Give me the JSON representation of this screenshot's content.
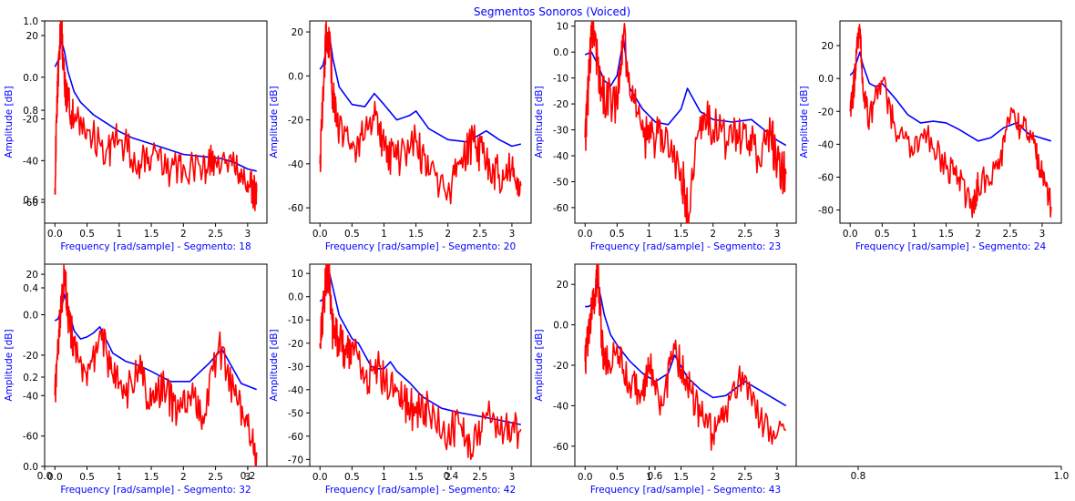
{
  "figure": {
    "title": "Segmentos Sonoros (Voiced)",
    "background_axes": {
      "x_ticks": [
        "0.0",
        "0.2",
        "0.4",
        "0.6",
        "0.8",
        "1.0"
      ],
      "y_ticks": [
        "0.0",
        "0.2",
        "0.4",
        "0.6",
        "0.8",
        "1.0"
      ]
    }
  },
  "colors": {
    "spectrum": "#ff0000",
    "lpc_envelope": "#0000ff",
    "label": "#0000ff"
  },
  "chart_data": [
    {
      "type": "line",
      "segment": 18,
      "xlabel": "Frequency [rad/sample] - Segmento: 18",
      "ylabel": "Amplitude [dB]",
      "xlim": [
        -0.16,
        3.3
      ],
      "ylim": [
        -70,
        27
      ],
      "xticks": [
        0.0,
        0.5,
        1.0,
        1.5,
        2.0,
        2.5,
        3.0
      ],
      "yticks": [
        -60,
        -40,
        -20,
        0,
        20
      ],
      "series": [
        {
          "color": "#0000ff",
          "x": [
            0,
            0.05,
            0.1,
            0.15,
            0.2,
            0.3,
            0.4,
            0.5,
            0.6,
            0.8,
            1.0,
            1.2,
            1.5,
            1.8,
            2.0,
            2.3,
            2.6,
            2.8,
            3.0,
            3.14
          ],
          "y": [
            5,
            8,
            18,
            12,
            3,
            -7,
            -12,
            -15,
            -18,
            -22,
            -26,
            -29,
            -32,
            -35,
            -37,
            -38,
            -39,
            -41,
            -44,
            -45
          ]
        },
        {
          "color": "#ff0000",
          "x": [
            0,
            0.03,
            0.06,
            0.1,
            0.15,
            0.2,
            0.3,
            0.5,
            0.8,
            1.0,
            1.3,
            1.5,
            1.8,
            2.0,
            2.3,
            2.5,
            2.8,
            3.0,
            3.1,
            3.14
          ],
          "y": [
            -53,
            -15,
            10,
            26,
            -5,
            -10,
            -22,
            -25,
            -35,
            -30,
            -40,
            -38,
            -45,
            -42,
            -44,
            -40,
            -45,
            -50,
            -56,
            -55
          ]
        }
      ]
    },
    {
      "type": "line",
      "segment": 20,
      "xlabel": "Frequency [rad/sample] - Segmento: 20",
      "ylabel": "Amplitude [dB]",
      "xlim": [
        -0.16,
        3.3
      ],
      "ylim": [
        -67,
        25
      ],
      "xticks": [
        0.0,
        0.5,
        1.0,
        1.5,
        2.0,
        2.5,
        3.0
      ],
      "yticks": [
        -60,
        -40,
        -20,
        0,
        20
      ],
      "series": [
        {
          "color": "#0000ff",
          "x": [
            0,
            0.05,
            0.1,
            0.15,
            0.2,
            0.3,
            0.5,
            0.7,
            0.85,
            1.0,
            1.2,
            1.4,
            1.5,
            1.7,
            2.0,
            2.3,
            2.6,
            2.8,
            3.0,
            3.14
          ],
          "y": [
            3,
            5,
            12,
            18,
            8,
            -5,
            -13,
            -14,
            -8,
            -13,
            -20,
            -18,
            -16,
            -24,
            -29,
            -30,
            -25,
            -29,
            -32,
            -31
          ]
        },
        {
          "color": "#ff0000",
          "x": [
            0,
            0.05,
            0.1,
            0.15,
            0.2,
            0.3,
            0.5,
            0.7,
            0.9,
            1.0,
            1.2,
            1.5,
            1.7,
            2.0,
            2.2,
            2.4,
            2.6,
            2.8,
            3.0,
            3.14
          ],
          "y": [
            -40,
            -5,
            21,
            15,
            -10,
            -25,
            -33,
            -28,
            -18,
            -34,
            -38,
            -30,
            -45,
            -52,
            -40,
            -30,
            -40,
            -45,
            -42,
            -50
          ]
        }
      ]
    },
    {
      "type": "line",
      "segment": 23,
      "xlabel": "Frequency [rad/sample] - Segmento: 23",
      "ylabel": "Amplitude [dB]",
      "xlim": [
        -0.16,
        3.3
      ],
      "ylim": [
        -66,
        12
      ],
      "xticks": [
        0.0,
        0.5,
        1.0,
        1.5,
        2.0,
        2.5,
        3.0
      ],
      "yticks": [
        -60,
        -50,
        -40,
        -30,
        -20,
        -10,
        0,
        10
      ],
      "series": [
        {
          "color": "#0000ff",
          "x": [
            0,
            0.1,
            0.2,
            0.3,
            0.4,
            0.5,
            0.6,
            0.7,
            0.9,
            1.1,
            1.3,
            1.5,
            1.6,
            1.8,
            2.0,
            2.3,
            2.6,
            2.8,
            3.0,
            3.14
          ],
          "y": [
            -1,
            0,
            -5,
            -11,
            -13,
            -9,
            5,
            -14,
            -22,
            -27,
            -28,
            -22,
            -14,
            -23,
            -26,
            -27,
            -26,
            -30,
            -34,
            -36
          ]
        },
        {
          "color": "#ff0000",
          "x": [
            0,
            0.05,
            0.1,
            0.2,
            0.3,
            0.5,
            0.6,
            0.8,
            1.0,
            1.2,
            1.5,
            1.6,
            1.8,
            2.0,
            2.3,
            2.5,
            2.7,
            2.9,
            3.0,
            3.14
          ],
          "y": [
            -33,
            -15,
            9,
            -5,
            -18,
            -20,
            6,
            -25,
            -35,
            -30,
            -45,
            -62,
            -25,
            -30,
            -35,
            -28,
            -40,
            -30,
            -45,
            -47
          ]
        }
      ]
    },
    {
      "type": "line",
      "segment": 24,
      "xlabel": "Frequency [rad/sample] - Segmento: 24",
      "ylabel": "Amplitude [dB]",
      "xlim": [
        -0.16,
        3.3
      ],
      "ylim": [
        -88,
        35
      ],
      "xticks": [
        0.0,
        0.5,
        1.0,
        1.5,
        2.0,
        2.5,
        3.0
      ],
      "yticks": [
        -80,
        -60,
        -40,
        -20,
        0,
        20
      ],
      "series": [
        {
          "color": "#0000ff",
          "x": [
            0,
            0.05,
            0.1,
            0.15,
            0.2,
            0.3,
            0.4,
            0.5,
            0.7,
            0.9,
            1.1,
            1.3,
            1.5,
            1.7,
            2.0,
            2.2,
            2.4,
            2.6,
            2.8,
            3.14
          ],
          "y": [
            2,
            4,
            10,
            16,
            8,
            -3,
            -5,
            -3,
            -12,
            -22,
            -27,
            -26,
            -27,
            -31,
            -38,
            -36,
            -30,
            -27,
            -34,
            -38
          ]
        },
        {
          "color": "#ff0000",
          "x": [
            0,
            0.05,
            0.1,
            0.15,
            0.2,
            0.3,
            0.5,
            0.7,
            1.0,
            1.2,
            1.5,
            1.7,
            1.9,
            2.0,
            2.3,
            2.5,
            2.7,
            2.9,
            3.0,
            3.14
          ],
          "y": [
            -20,
            -8,
            15,
            30,
            -8,
            -25,
            -2,
            -30,
            -45,
            -35,
            -55,
            -60,
            -80,
            -65,
            -55,
            -25,
            -30,
            -45,
            -60,
            -78
          ]
        }
      ]
    },
    {
      "type": "line",
      "segment": 32,
      "xlabel": "Frequency [rad/sample] - Segmento: 32",
      "ylabel": "Amplitude [dB]",
      "xlim": [
        -0.16,
        3.3
      ],
      "ylim": [
        -75,
        25
      ],
      "xticks": [
        0.0,
        0.5,
        1.0,
        1.5,
        2.0,
        2.5,
        3.0
      ],
      "yticks": [
        -60,
        -40,
        -20,
        0,
        20
      ],
      "series": [
        {
          "color": "#0000ff",
          "x": [
            0,
            0.05,
            0.1,
            0.15,
            0.2,
            0.3,
            0.4,
            0.5,
            0.6,
            0.7,
            0.9,
            1.1,
            1.3,
            1.5,
            1.8,
            2.1,
            2.4,
            2.6,
            2.9,
            3.14
          ],
          "y": [
            -3,
            -2,
            3,
            10,
            4,
            -8,
            -12,
            -11,
            -9,
            -6,
            -19,
            -23,
            -25,
            -28,
            -33,
            -33,
            -24,
            -17,
            -34,
            -37
          ]
        },
        {
          "color": "#ff0000",
          "x": [
            0,
            0.05,
            0.1,
            0.15,
            0.2,
            0.3,
            0.5,
            0.7,
            0.9,
            1.1,
            1.3,
            1.5,
            1.7,
            1.9,
            2.1,
            2.3,
            2.55,
            2.8,
            3.0,
            3.14
          ],
          "y": [
            -40,
            -15,
            5,
            22,
            0,
            -15,
            -35,
            -8,
            -30,
            -40,
            -25,
            -45,
            -35,
            -50,
            -40,
            -50,
            -15,
            -40,
            -55,
            -68
          ]
        }
      ]
    },
    {
      "type": "line",
      "segment": 42,
      "xlabel": "Frequency [rad/sample] - Segmento: 42",
      "ylabel": "Amplitude [dB]",
      "xlim": [
        -0.16,
        3.3
      ],
      "ylim": [
        -73,
        14
      ],
      "xticks": [
        0.0,
        0.5,
        1.0,
        1.5,
        2.0,
        2.5,
        3.0
      ],
      "yticks": [
        -70,
        -60,
        -50,
        -40,
        -30,
        -20,
        -10,
        0,
        10
      ],
      "series": [
        {
          "color": "#0000ff",
          "x": [
            0,
            0.05,
            0.1,
            0.15,
            0.2,
            0.3,
            0.4,
            0.5,
            0.6,
            0.8,
            0.9,
            1.0,
            1.1,
            1.2,
            1.4,
            1.6,
            1.9,
            2.2,
            2.6,
            3.14
          ],
          "y": [
            -2,
            -1,
            2,
            10,
            4,
            -8,
            -13,
            -18,
            -20,
            -30,
            -31,
            -31,
            -28,
            -32,
            -37,
            -43,
            -48,
            -50,
            -52,
            -55
          ]
        },
        {
          "color": "#ff0000",
          "x": [
            0,
            0.05,
            0.1,
            0.15,
            0.2,
            0.3,
            0.4,
            0.5,
            0.7,
            0.9,
            1.1,
            1.3,
            1.5,
            1.7,
            2.0,
            2.2,
            2.4,
            2.6,
            2.9,
            3.14
          ],
          "y": [
            -20,
            -5,
            12,
            5,
            -15,
            -18,
            -25,
            -20,
            -35,
            -30,
            -40,
            -45,
            -50,
            -48,
            -60,
            -55,
            -65,
            -50,
            -55,
            -57
          ]
        }
      ]
    },
    {
      "type": "line",
      "segment": 43,
      "xlabel": "Frequency [rad/sample] - Segmento: 43",
      "ylabel": "Amplitude [dB]",
      "xlim": [
        -0.16,
        3.3
      ],
      "ylim": [
        -70,
        30
      ],
      "xticks": [
        0.0,
        0.5,
        1.0,
        1.5,
        2.0,
        2.5,
        3.0
      ],
      "yticks": [
        -60,
        -40,
        -20,
        0,
        20
      ],
      "series": [
        {
          "color": "#0000ff",
          "x": [
            0,
            0.05,
            0.1,
            0.15,
            0.2,
            0.25,
            0.3,
            0.4,
            0.5,
            0.7,
            0.9,
            1.1,
            1.3,
            1.4,
            1.6,
            1.8,
            2.0,
            2.2,
            2.5,
            3.14
          ],
          "y": [
            9,
            9,
            10,
            14,
            20,
            13,
            5,
            -5,
            -10,
            -18,
            -24,
            -28,
            -24,
            -15,
            -26,
            -32,
            -36,
            -35,
            -28,
            -40
          ]
        },
        {
          "color": "#ff0000",
          "x": [
            0,
            0.05,
            0.1,
            0.15,
            0.2,
            0.25,
            0.3,
            0.5,
            0.7,
            0.9,
            1.0,
            1.2,
            1.4,
            1.6,
            1.8,
            2.0,
            2.2,
            2.5,
            2.8,
            3.14
          ],
          "y": [
            -18,
            -5,
            5,
            15,
            27,
            -2,
            -20,
            -10,
            -30,
            -35,
            -20,
            -40,
            -12,
            -30,
            -45,
            -55,
            -40,
            -25,
            -50,
            -52
          ]
        }
      ]
    }
  ]
}
